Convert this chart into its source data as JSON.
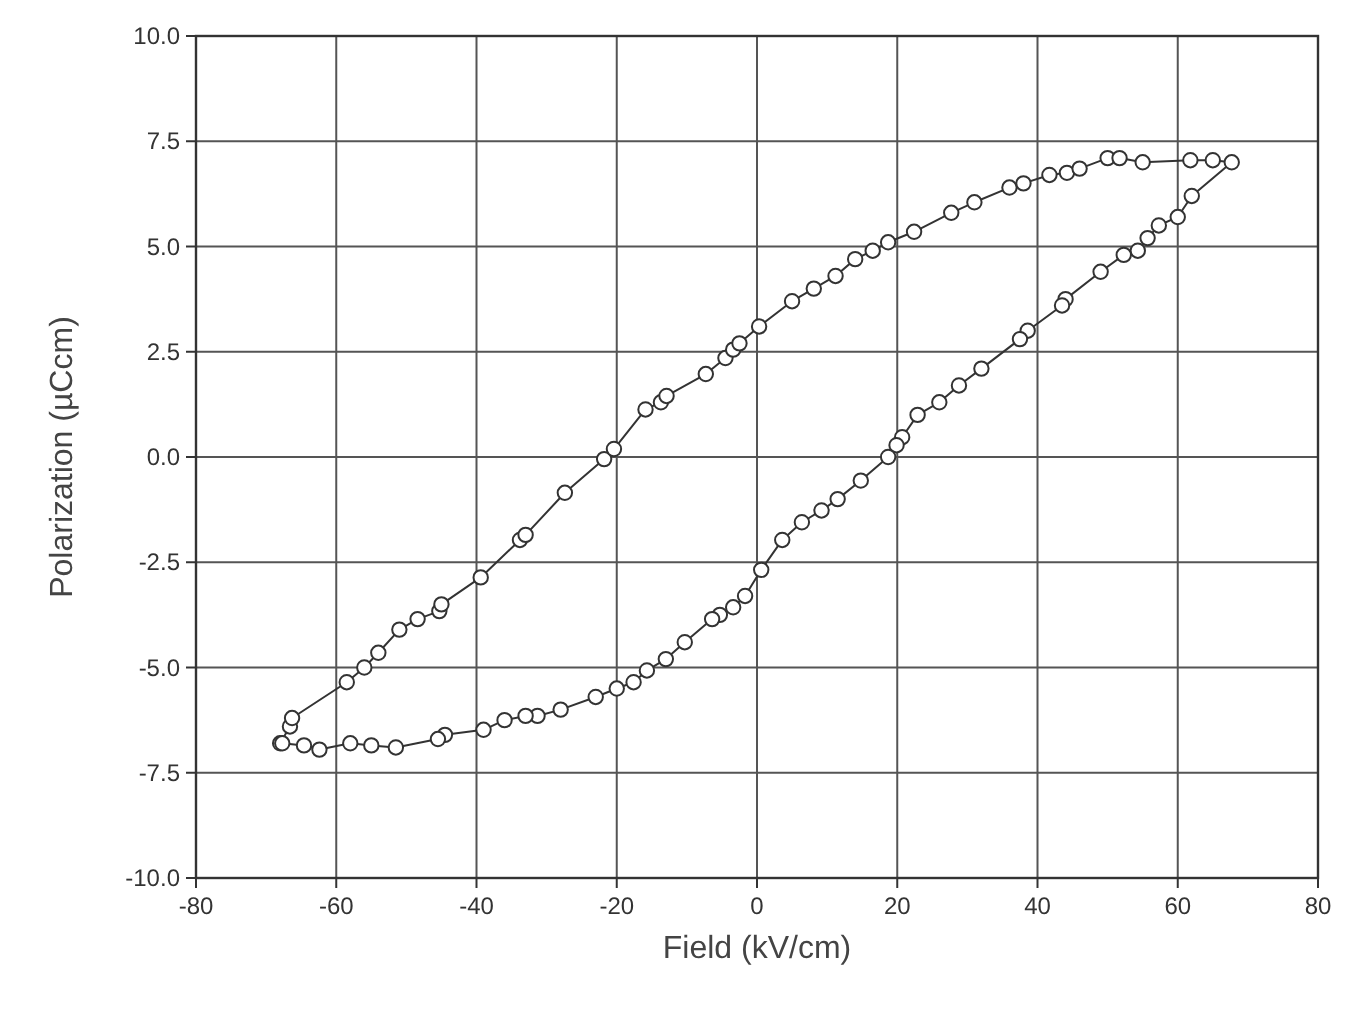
{
  "chart_data": {
    "type": "line",
    "xlabel": "Field (kV/cm)",
    "ylabel": "Polarization (µCcm)",
    "xlim": [
      -80,
      80
    ],
    "ylim": [
      -10,
      10
    ],
    "xticks": [
      -80,
      -60,
      -40,
      -20,
      0,
      20,
      40,
      60,
      80
    ],
    "yticks": [
      {
        "value": -10,
        "label": "-10.0"
      },
      -7.5,
      {
        "value": -5,
        "label": "-5.0"
      },
      -2.5,
      {
        "value": 0,
        "label": "0.0"
      },
      2.5,
      {
        "value": 5,
        "label": "5.0"
      },
      7.5,
      {
        "value": 10,
        "label": "10.0"
      }
    ],
    "grid": true,
    "marker": "circle",
    "line_style": "solid",
    "series": [
      {
        "color": "#333333",
        "x": [
          -68,
          -66.6,
          -66.3,
          -58.5,
          -56,
          -54,
          -51,
          -48.4,
          -45.3,
          -45,
          -39.4,
          -33.8,
          -33,
          -27.4,
          -21.8,
          -20.4,
          -15.9,
          -13.7,
          -12.9,
          -7.3,
          -4.5,
          -3.4,
          -2.5,
          0.3,
          5,
          8.1,
          11.2,
          14,
          16.5,
          18.7,
          22.4,
          27.7,
          31,
          36,
          38,
          41.7,
          44.2,
          46,
          50,
          51.7,
          55,
          61.8,
          65,
          67.7,
          62,
          60,
          57.3,
          55.7,
          54.3,
          52.3,
          49,
          44,
          43.5,
          38.6,
          37.5,
          32,
          28.8,
          26,
          22.9,
          20.7,
          19.9,
          18.7,
          14.8,
          11.5,
          9.2,
          6.4,
          3.6,
          0.6,
          -1.7,
          -3.4,
          -5.3,
          -6.4,
          -10.3,
          -13,
          -15.7,
          -17.6,
          -20,
          -23,
          -28,
          -31.3,
          -33,
          -36,
          -39,
          -44.5,
          -45.5,
          -51.5,
          -55,
          -58,
          -62.4,
          -64.6,
          -67.7
        ],
        "values": [
          -6.8,
          -6.4,
          -6.2,
          -5.35,
          -5.0,
          -4.65,
          -4.1,
          -3.85,
          -3.66,
          -3.5,
          -2.86,
          -1.97,
          -1.85,
          -0.85,
          -0.05,
          0.19,
          1.13,
          1.3,
          1.45,
          1.97,
          2.35,
          2.55,
          2.7,
          3.1,
          3.7,
          4.0,
          4.3,
          4.7,
          4.9,
          5.1,
          5.35,
          5.8,
          6.05,
          6.4,
          6.5,
          6.7,
          6.75,
          6.85,
          7.1,
          7.1,
          7.0,
          7.05,
          7.05,
          7.0,
          6.2,
          5.7,
          5.5,
          5.2,
          4.9,
          4.8,
          4.4,
          3.75,
          3.6,
          3.0,
          2.8,
          2.1,
          1.7,
          1.3,
          1.0,
          0.47,
          0.28,
          0,
          -0.56,
          -1.0,
          -1.27,
          -1.55,
          -1.97,
          -2.68,
          -3.3,
          -3.57,
          -3.75,
          -3.85,
          -4.4,
          -4.8,
          -5.07,
          -5.35,
          -5.5,
          -5.7,
          -6.0,
          -6.15,
          -6.15,
          -6.25,
          -6.48,
          -6.6,
          -6.7,
          -6.9,
          -6.85,
          -6.8,
          -6.95,
          -6.85,
          -6.8
        ]
      }
    ]
  }
}
